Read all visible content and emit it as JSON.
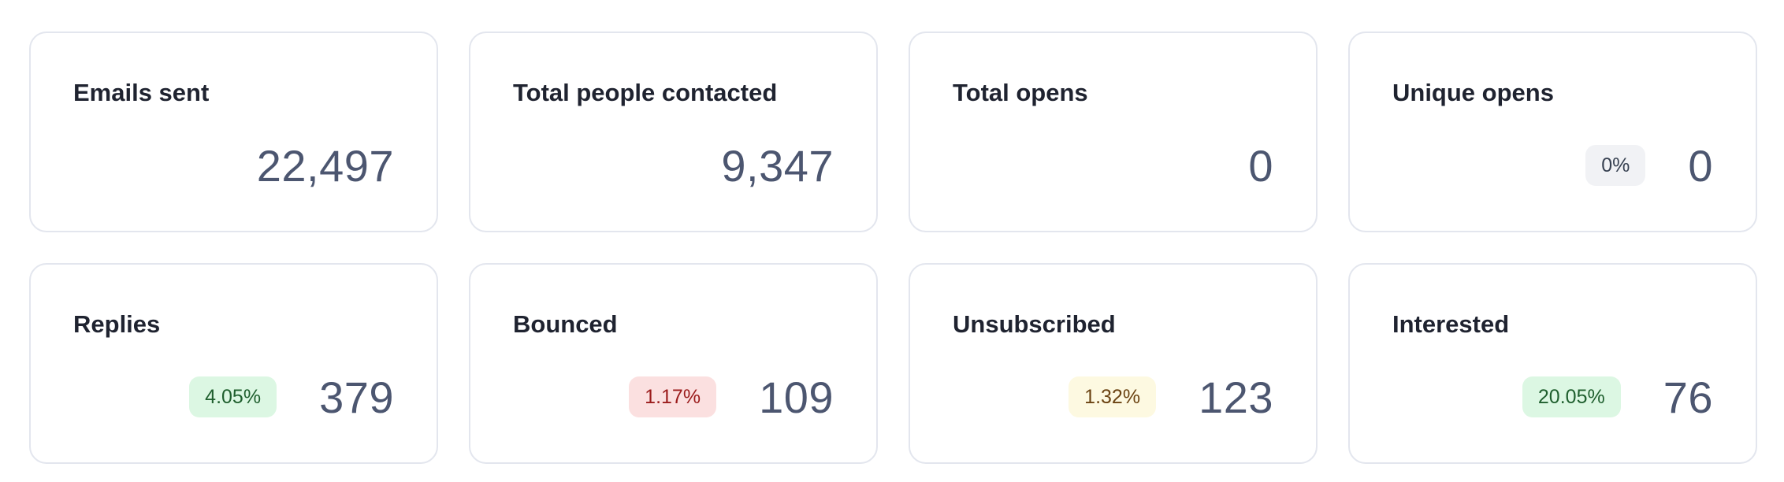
{
  "cards": [
    {
      "title": "Emails sent",
      "value": "22,497"
    },
    {
      "title": "Total people contacted",
      "value": "9,347"
    },
    {
      "title": "Total opens",
      "value": "0"
    },
    {
      "title": "Unique opens",
      "value": "0",
      "badge": "0%",
      "badge_background": "#f1f2f5",
      "badge_color": "#374151"
    },
    {
      "title": "Replies",
      "value": "379",
      "badge": "4.05%",
      "badge_background": "#dcf7e3",
      "badge_color": "#1f5f2e"
    },
    {
      "title": "Bounced",
      "value": "109",
      "badge": "1.17%",
      "badge_background": "#fbe0e0",
      "badge_color": "#9b1c1c"
    },
    {
      "title": "Unsubscribed",
      "value": "123",
      "badge": "1.32%",
      "badge_background": "#fdf9e1",
      "badge_color": "#6b4312"
    },
    {
      "title": "Interested",
      "value": "76",
      "badge": "20.05%",
      "badge_background": "#dcf7e3",
      "badge_color": "#1f5f2e"
    }
  ]
}
